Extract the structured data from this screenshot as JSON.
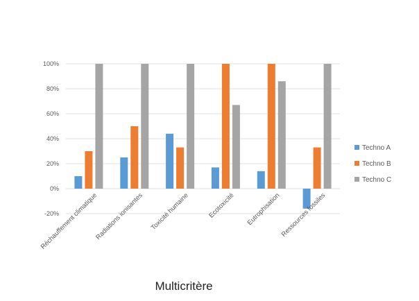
{
  "chart_data": {
    "type": "bar",
    "title": "Multicritère",
    "categories": [
      "Réchauffement climatique",
      "Radiations ionisantes",
      "Toxicité humaine",
      "Ecotoxicité",
      "Eutrophisation",
      "Ressources fossiles"
    ],
    "series": [
      {
        "name": "Techno A",
        "color": "#5B9BD5",
        "values": [
          10,
          25,
          44,
          17,
          14,
          -16
        ]
      },
      {
        "name": "Techno B",
        "color": "#ED7D31",
        "values": [
          30,
          50,
          33,
          100,
          100,
          33
        ]
      },
      {
        "name": "Techno C",
        "color": "#A5A5A5",
        "values": [
          100,
          100,
          100,
          67,
          86,
          100
        ]
      }
    ],
    "y_ticks": [
      "-20%",
      "0%",
      "20%",
      "40%",
      "60%",
      "80%",
      "100%"
    ],
    "ylim": [
      -20,
      100
    ],
    "grid": true,
    "legend_position": "right"
  }
}
